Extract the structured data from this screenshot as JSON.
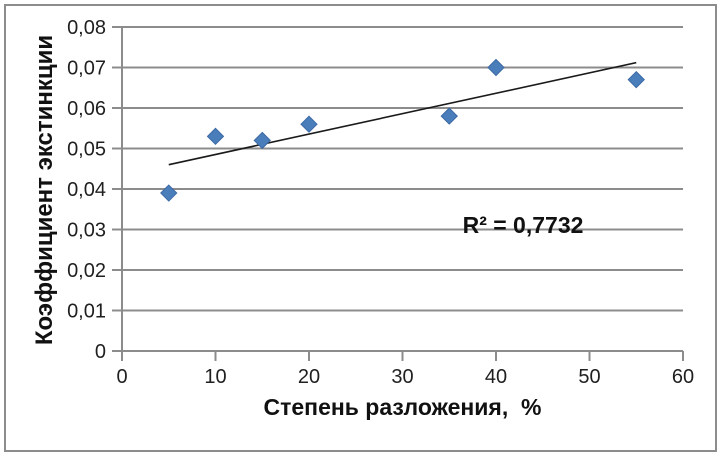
{
  "chart_data": {
    "type": "scatter",
    "title": "",
    "xlabel": "Степень разложения,  %",
    "ylabel": "Коэффициент экстинкции",
    "xlim": [
      0,
      60
    ],
    "ylim": [
      0,
      0.08
    ],
    "grid": "horizontal-major",
    "legend": "none",
    "x_ticks": {
      "values": [
        0,
        10,
        20,
        30,
        40,
        50,
        60
      ],
      "labels": [
        "0",
        "10",
        "20",
        "30",
        "40",
        "50",
        "60"
      ]
    },
    "y_ticks": {
      "values": [
        0,
        0.01,
        0.02,
        0.03,
        0.04,
        0.05,
        0.06,
        0.07,
        0.08
      ],
      "labels": [
        "0",
        "0,01",
        "0,02",
        "0,03",
        "0,04",
        "0,05",
        "0,06",
        "0,07",
        "0,08"
      ]
    },
    "series": [
      {
        "name": "extinction-coefficient",
        "marker": "diamond",
        "points": [
          [
            5,
            0.039
          ],
          [
            10,
            0.053
          ],
          [
            15,
            0.052
          ],
          [
            20,
            0.056
          ],
          [
            35,
            0.058
          ],
          [
            40,
            0.07
          ],
          [
            55,
            0.067
          ]
        ]
      }
    ],
    "trendline": {
      "type": "linear",
      "x1": 5,
      "y1": 0.046,
      "x2": 55,
      "y2": 0.0712
    },
    "annotation": {
      "text": "R² = 0,7732",
      "x": 42.8,
      "y": 0.0305
    }
  },
  "colors": {
    "frame_border": "#8c8c8c",
    "gridline": "#8c8c8c",
    "axis": "#8c8c8c",
    "marker_fill": "#4a7ebb",
    "marker_edge": "#3b69a5",
    "trendline": "#1a1a1a",
    "tick_label": "#1f1f1f",
    "title_text": "#111111"
  }
}
